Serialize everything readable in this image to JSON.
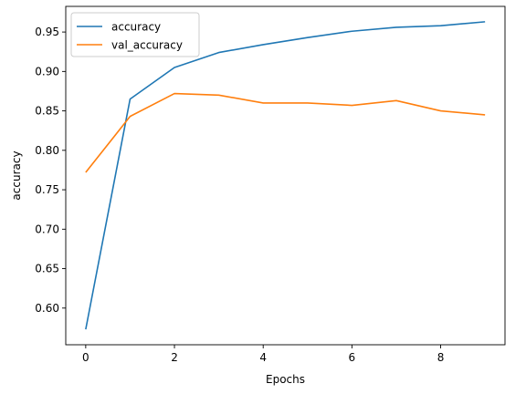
{
  "chart_data": {
    "type": "line",
    "title": "",
    "xlabel": "Epochs",
    "ylabel": "accuracy",
    "xlim": [
      -0.45,
      9.45
    ],
    "ylim": [
      0.5535,
      0.9825
    ],
    "x": [
      0,
      1,
      2,
      3,
      4,
      5,
      6,
      7,
      8,
      9
    ],
    "xticks": [
      "0",
      "2",
      "4",
      "6",
      "8"
    ],
    "xtick_values": [
      0,
      2,
      4,
      6,
      8
    ],
    "yticks": [
      "0.60",
      "0.65",
      "0.70",
      "0.75",
      "0.80",
      "0.85",
      "0.90",
      "0.95"
    ],
    "ytick_values": [
      0.6,
      0.65,
      0.7,
      0.75,
      0.8,
      0.85,
      0.9,
      0.95
    ],
    "legend_position": "upper-left",
    "grid": false,
    "series": [
      {
        "name": "accuracy",
        "color": "#1f77b4",
        "values": [
          0.573,
          0.865,
          0.905,
          0.924,
          0.934,
          0.943,
          0.951,
          0.956,
          0.958,
          0.963
        ]
      },
      {
        "name": "val_accuracy",
        "color": "#ff7f0e",
        "values": [
          0.772,
          0.843,
          0.872,
          0.87,
          0.86,
          0.86,
          0.857,
          0.863,
          0.85,
          0.845
        ]
      }
    ]
  }
}
